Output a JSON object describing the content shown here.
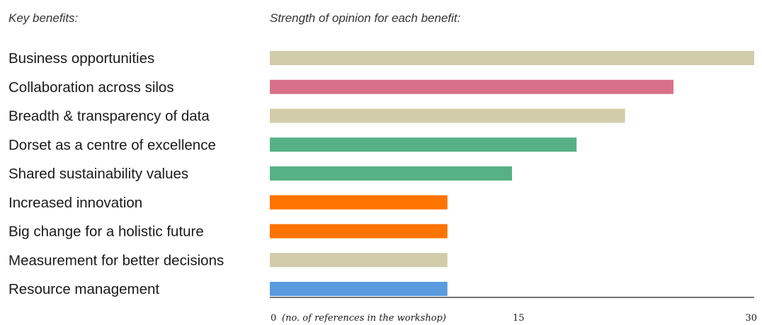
{
  "headings": {
    "left": "Key benefits:",
    "right": "Strength of opinion for each benefit:"
  },
  "chart_data": {
    "type": "bar",
    "orientation": "horizontal",
    "categories": [
      "Business opportunities",
      "Collaboration across silos",
      "Breadth & transparency of data",
      "Dorset as a centre of excellence",
      "Shared sustainability values",
      "Increased innovation",
      "Big change for a holistic future",
      "Measurement for better decisions",
      "Resource management"
    ],
    "values": [
      30,
      25,
      22,
      19,
      15,
      11,
      11,
      11,
      11
    ],
    "bar_colors": [
      "#d2ccaa",
      "#d9708a",
      "#d2ccaa",
      "#57b186",
      "#57b186",
      "#ff7300",
      "#ff7300",
      "#d2ccaa",
      "#5a9be0"
    ],
    "xlim": [
      0,
      30
    ],
    "x_ticks": [
      0,
      15,
      30
    ],
    "x_axis_note": "(no. of references in the workshop)",
    "grid": false,
    "legend": "none"
  }
}
